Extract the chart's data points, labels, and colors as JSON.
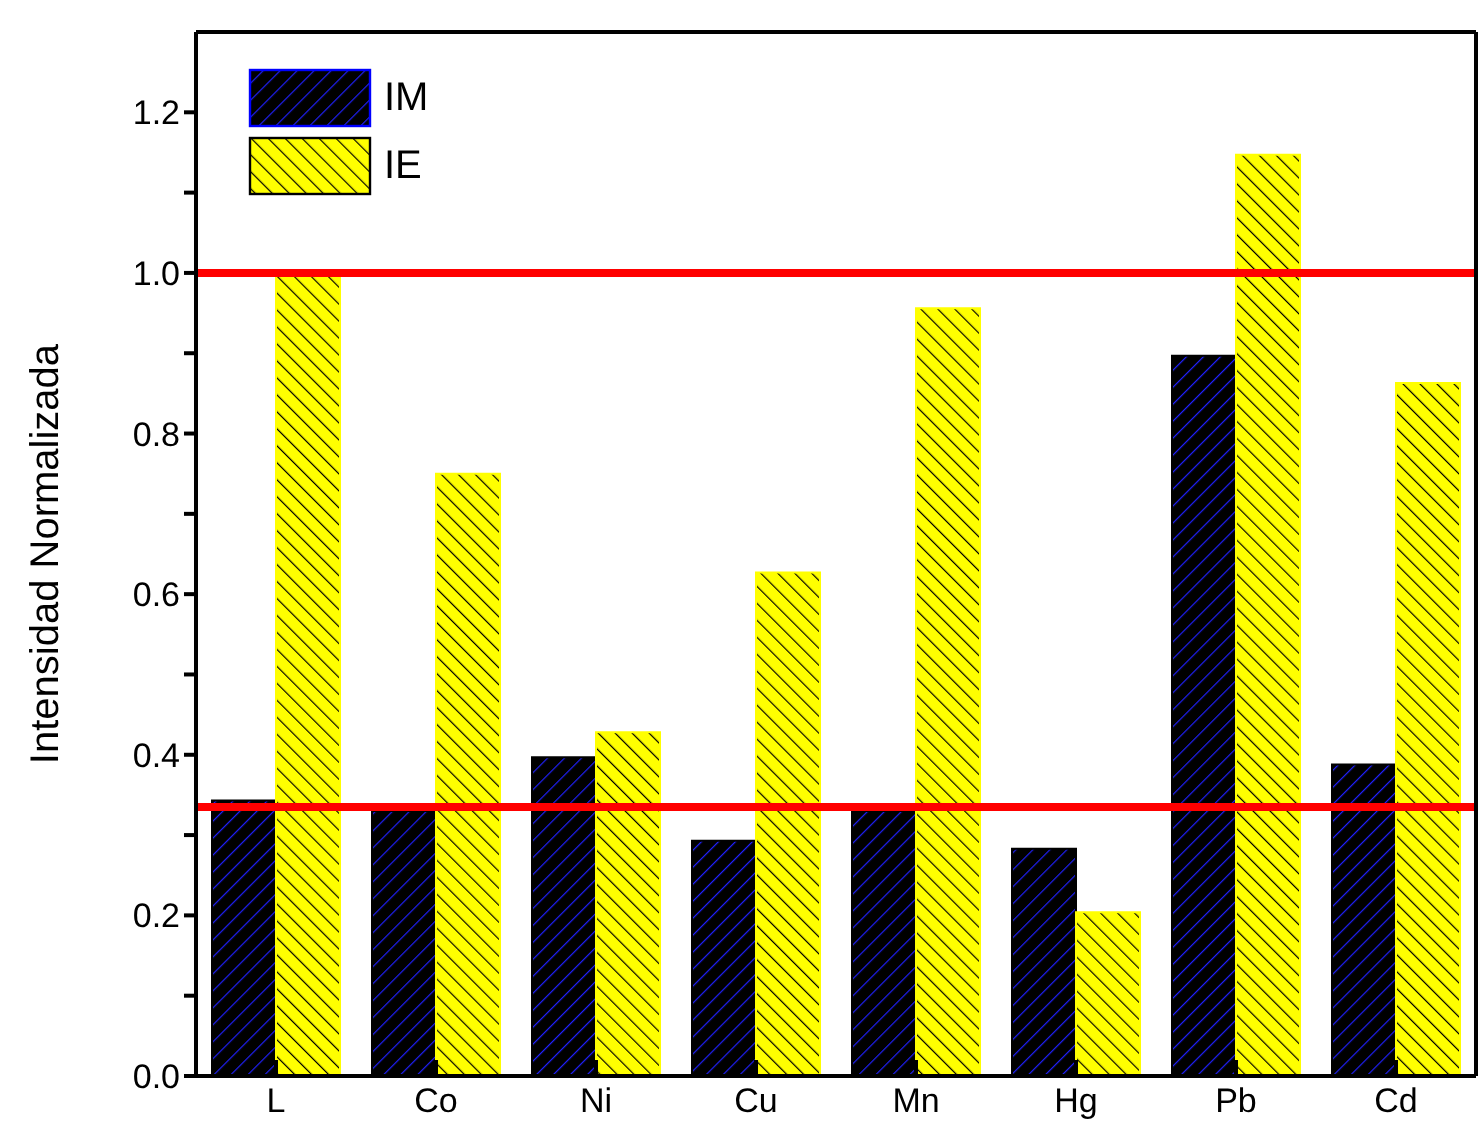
{
  "chart_data": {
    "type": "bar",
    "ylabel": "Intensidad Normalizada",
    "categories": [
      "L",
      "Co",
      "Ni",
      "Cu",
      "Mn",
      "Hg",
      "Pb",
      "Cd"
    ],
    "series": [
      {
        "name": "IM",
        "color": "#000000",
        "values": [
          0.343,
          0.33,
          0.397,
          0.293,
          0.33,
          0.283,
          0.897,
          0.388
        ]
      },
      {
        "name": "IE",
        "color": "#ffff00",
        "values": [
          0.997,
          0.75,
          0.428,
          0.627,
          0.956,
          0.204,
          1.147,
          0.863
        ]
      }
    ],
    "ylim": [
      0,
      1.3
    ],
    "yticks": [
      {
        "value": 0,
        "label": "0.0"
      },
      {
        "value": 0.1,
        "label": null
      },
      {
        "value": 0.2,
        "label": "0.2"
      },
      {
        "value": 0.3,
        "label": null
      },
      {
        "value": 0.4,
        "label": "0.4"
      },
      {
        "value": 0.5,
        "label": null
      },
      {
        "value": 0.6,
        "label": "0.6"
      },
      {
        "value": 0.7,
        "label": null
      },
      {
        "value": 0.8,
        "label": "0.8"
      },
      {
        "value": 0.9,
        "label": null
      },
      {
        "value": 1,
        "label": "1.0"
      },
      {
        "value": 1.1,
        "label": null
      },
      {
        "value": 1.2,
        "label": "1.2"
      }
    ],
    "ref_lines": [
      {
        "axis": "y",
        "value": 1,
        "color": "#ff0000"
      },
      {
        "axis": "y",
        "value": 0.335,
        "color": "#ff0000"
      }
    ],
    "grid": false,
    "legend": "top left"
  }
}
